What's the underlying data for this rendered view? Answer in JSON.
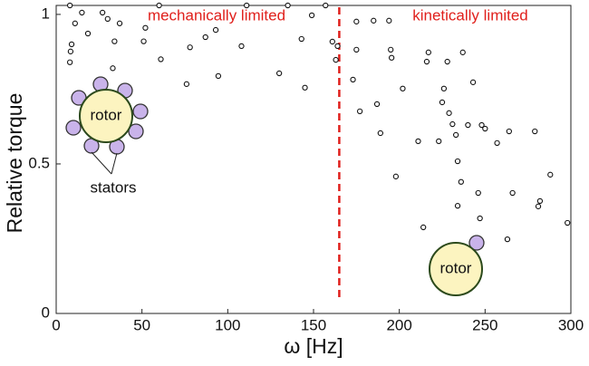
{
  "chart_data": {
    "type": "scatter",
    "x_label": "ω [Hz]",
    "y_label": "Relative torque",
    "annotations": [
      "mechanically limited",
      "kinetically limited"
    ],
    "diagram_labels": [
      "rotor",
      "stators",
      "rotor"
    ],
    "threshold_x": 165,
    "threshold_color": "#e0201c",
    "marker_color": "#111111",
    "xlim": [
      0,
      300
    ],
    "ylim": [
      0,
      1.03
    ],
    "xticks": [
      0,
      50,
      100,
      150,
      200,
      250,
      300
    ],
    "yticks": [
      0,
      0.5,
      1
    ],
    "x": [
      8,
      15,
      27,
      30,
      11,
      9,
      8.4,
      8,
      18.5,
      37,
      34,
      33,
      52,
      51,
      60,
      61,
      78,
      76,
      87,
      93,
      94.5,
      108,
      111,
      130,
      135,
      143,
      145,
      149,
      157,
      161,
      163,
      164,
      175,
      185,
      173,
      175,
      177,
      187,
      189,
      194,
      195,
      195.5,
      202,
      198,
      211,
      216,
      217,
      214,
      223,
      226,
      225,
      228,
      229,
      231,
      234,
      233,
      237,
      236,
      234,
      240,
      243,
      246,
      247,
      248,
      250,
      257,
      263,
      264,
      266,
      279,
      282,
      281,
      288,
      298
    ],
    "values": [
      1.03,
      1.006,
      1.006,
      0.985,
      0.97,
      0.9,
      0.876,
      0.84,
      0.936,
      0.97,
      0.91,
      0.82,
      0.955,
      0.91,
      1.03,
      0.85,
      0.89,
      0.767,
      0.924,
      0.948,
      0.794,
      0.894,
      1.03,
      0.803,
      1.03,
      0.918,
      0.755,
      0.997,
      1.03,
      0.909,
      0.848,
      0.894,
      0.976,
      0.979,
      0.782,
      0.882,
      0.676,
      0.7,
      0.603,
      0.979,
      0.882,
      0.855,
      0.752,
      0.458,
      0.576,
      0.842,
      0.873,
      0.288,
      0.576,
      0.752,
      0.706,
      0.842,
      0.67,
      0.633,
      0.509,
      0.597,
      0.873,
      0.44,
      0.36,
      0.63,
      0.773,
      0.403,
      0.318,
      0.63,
      0.618,
      0.57,
      0.248,
      0.609,
      0.403,
      0.609,
      0.376,
      0.358,
      0.464,
      0.303
    ]
  }
}
